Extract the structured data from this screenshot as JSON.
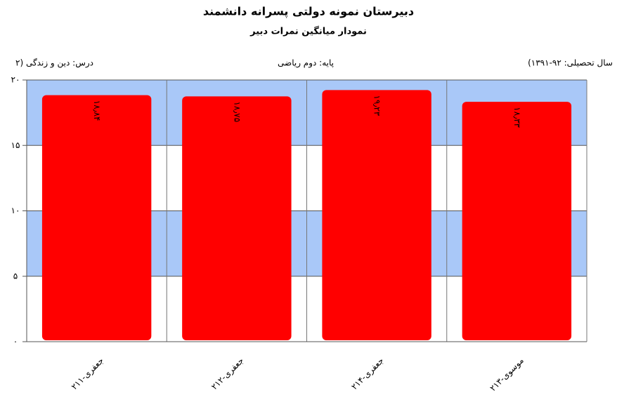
{
  "chart_data": {
    "type": "bar",
    "title": "دبیرستان  نمونه دولتی پسرانه دانشمند",
    "subtitle": "نمودار میانگین نمرات دبیر",
    "course": "درس: دین  و زندگی (۲",
    "grade": "پایه: دوم ریاضی",
    "year": "(سال تحصیلی: ۹۲-۱۳۹۱",
    "categories": [
      "جعفری-۲۱۱",
      "جعفری-۲۱۲",
      "جعفری-۲۱۴",
      "موسوی-۲۱۳"
    ],
    "values": [
      18.84,
      18.75,
      19.23,
      18.33
    ],
    "value_labels": [
      "۱۸٫۸۴",
      "۱۸٫۷۵",
      "۱۹٫۲۳",
      "۱۸٫۳۳"
    ],
    "color": "#ff0000",
    "ylim": [
      0,
      20
    ],
    "yticks": [
      {
        "value": 0,
        "label": "۰"
      },
      {
        "value": 5,
        "label": "۵"
      },
      {
        "value": 10,
        "label": "۱۰"
      },
      {
        "value": 15,
        "label": "۱۵"
      },
      {
        "value": 20,
        "label": "۲۰"
      }
    ],
    "grid": true
  }
}
